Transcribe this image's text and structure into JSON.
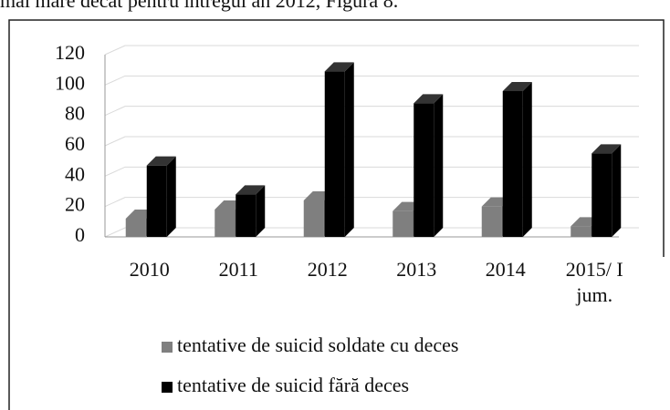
{
  "document_text": "mai mare decât pentru întregul an 2012, Figura 8.",
  "chart_data": {
    "type": "bar3d",
    "categories": [
      "2010",
      "2011",
      "2012",
      "2013",
      "2014",
      "2015/ I jum."
    ],
    "series": [
      {
        "name": "tentative de suicid soldate cu deces",
        "color": "#7f7f7f",
        "values": [
          12,
          18,
          24,
          17,
          20,
          7
        ]
      },
      {
        "name": "tentative de suicid fără deces",
        "color": "#000000",
        "values": [
          47,
          28,
          109,
          88,
          96,
          55
        ]
      }
    ],
    "ylim": [
      0,
      120
    ],
    "yticks": [
      0,
      20,
      40,
      60,
      80,
      100,
      120
    ],
    "grid": true,
    "legend": "bottom"
  }
}
